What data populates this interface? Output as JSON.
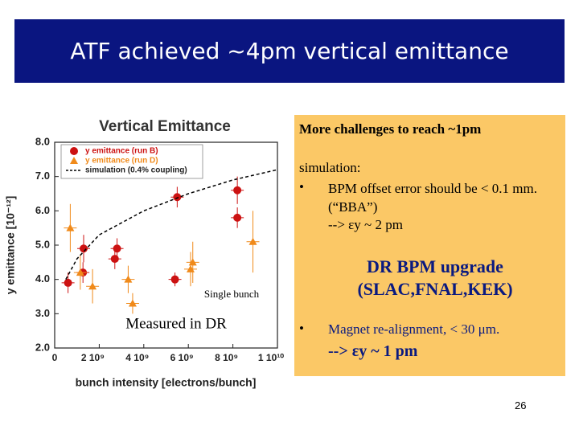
{
  "slide": {
    "title": "ATF achieved ~4pm vertical emittance",
    "box": {
      "heading": "More challenges to reach ~1pm",
      "simulation_label": "simulation:",
      "bullet1": "BPM offset error should be < 0.1 mm. (“BBA”)",
      "result1": "--> εy ~ 2 pm",
      "upgrade": "DR BPM upgrade (SLAC,FNAL,KEK)",
      "bullet2": "Magnet re-alignment, < 30 μm.",
      "result2": "--> εy ~ 1 pm"
    },
    "page_number": "26"
  },
  "chart_data": {
    "type": "scatter",
    "title": "Vertical Emittance",
    "x_label": "bunch intensity [electrons/bunch]",
    "y_label": "y emittance [10⁻¹²]",
    "annotations": [
      "Single bunch",
      "Measured in DR"
    ],
    "xlim": [
      0,
      10000000000
    ],
    "xticks": [
      0,
      {
        "value": 2000000000,
        "label": "2 10⁹"
      },
      {
        "value": 4000000000,
        "label": "4 10⁹"
      },
      {
        "value": 6000000000,
        "label": "6 10⁹"
      },
      {
        "value": 8000000000,
        "label": "8 10⁹"
      },
      {
        "value": 10000000000,
        "label": "1 10¹⁰"
      }
    ],
    "ylim": [
      2,
      8
    ],
    "yticks": [
      {
        "value": 2,
        "label": "2.0"
      },
      {
        "value": 3,
        "label": "3.0"
      },
      {
        "value": 4,
        "label": "4.0"
      },
      {
        "value": 5,
        "label": "5.0"
      },
      {
        "value": 6,
        "label": "6.0"
      },
      {
        "value": 7,
        "label": "7.0"
      },
      {
        "value": 8,
        "label": "8.0"
      }
    ],
    "series": [
      {
        "name": "y emittance (run B)",
        "color": "#cc1111",
        "marker": "circle",
        "x": [
          600000000,
          1300000000,
          1270000000,
          2700000000,
          2800000000,
          5500000000,
          5400000000,
          8200000000,
          8200000000
        ],
        "values": [
          3.9,
          4.9,
          4.2,
          4.6,
          4.9,
          6.4,
          4.0,
          6.6,
          5.8
        ],
        "errors": [
          0.3,
          0.4,
          0.3,
          0.3,
          0.3,
          0.3,
          0.2,
          0.4,
          0.3
        ]
      },
      {
        "name": "y emittance (run D)",
        "color": "#f08a1a",
        "marker": "triangle",
        "x": [
          700000000,
          1150000000,
          1700000000,
          3300000000,
          3500000000,
          6100000000,
          6200000000,
          8900000000
        ],
        "values": [
          5.5,
          4.2,
          3.8,
          4.0,
          3.3,
          4.3,
          4.5,
          5.1
        ],
        "errors": [
          0.7,
          0.5,
          0.5,
          0.4,
          0.3,
          0.5,
          0.6,
          0.9
        ]
      },
      {
        "name": "simulation (0.4% coupling)",
        "color": "#000000",
        "dash": true,
        "x": [
          500000000,
          1000000000,
          2000000000,
          4000000000,
          6000000000,
          8000000000,
          10000000000
        ],
        "values": [
          4.0,
          4.6,
          5.3,
          6.0,
          6.5,
          6.9,
          7.2
        ]
      }
    ]
  }
}
